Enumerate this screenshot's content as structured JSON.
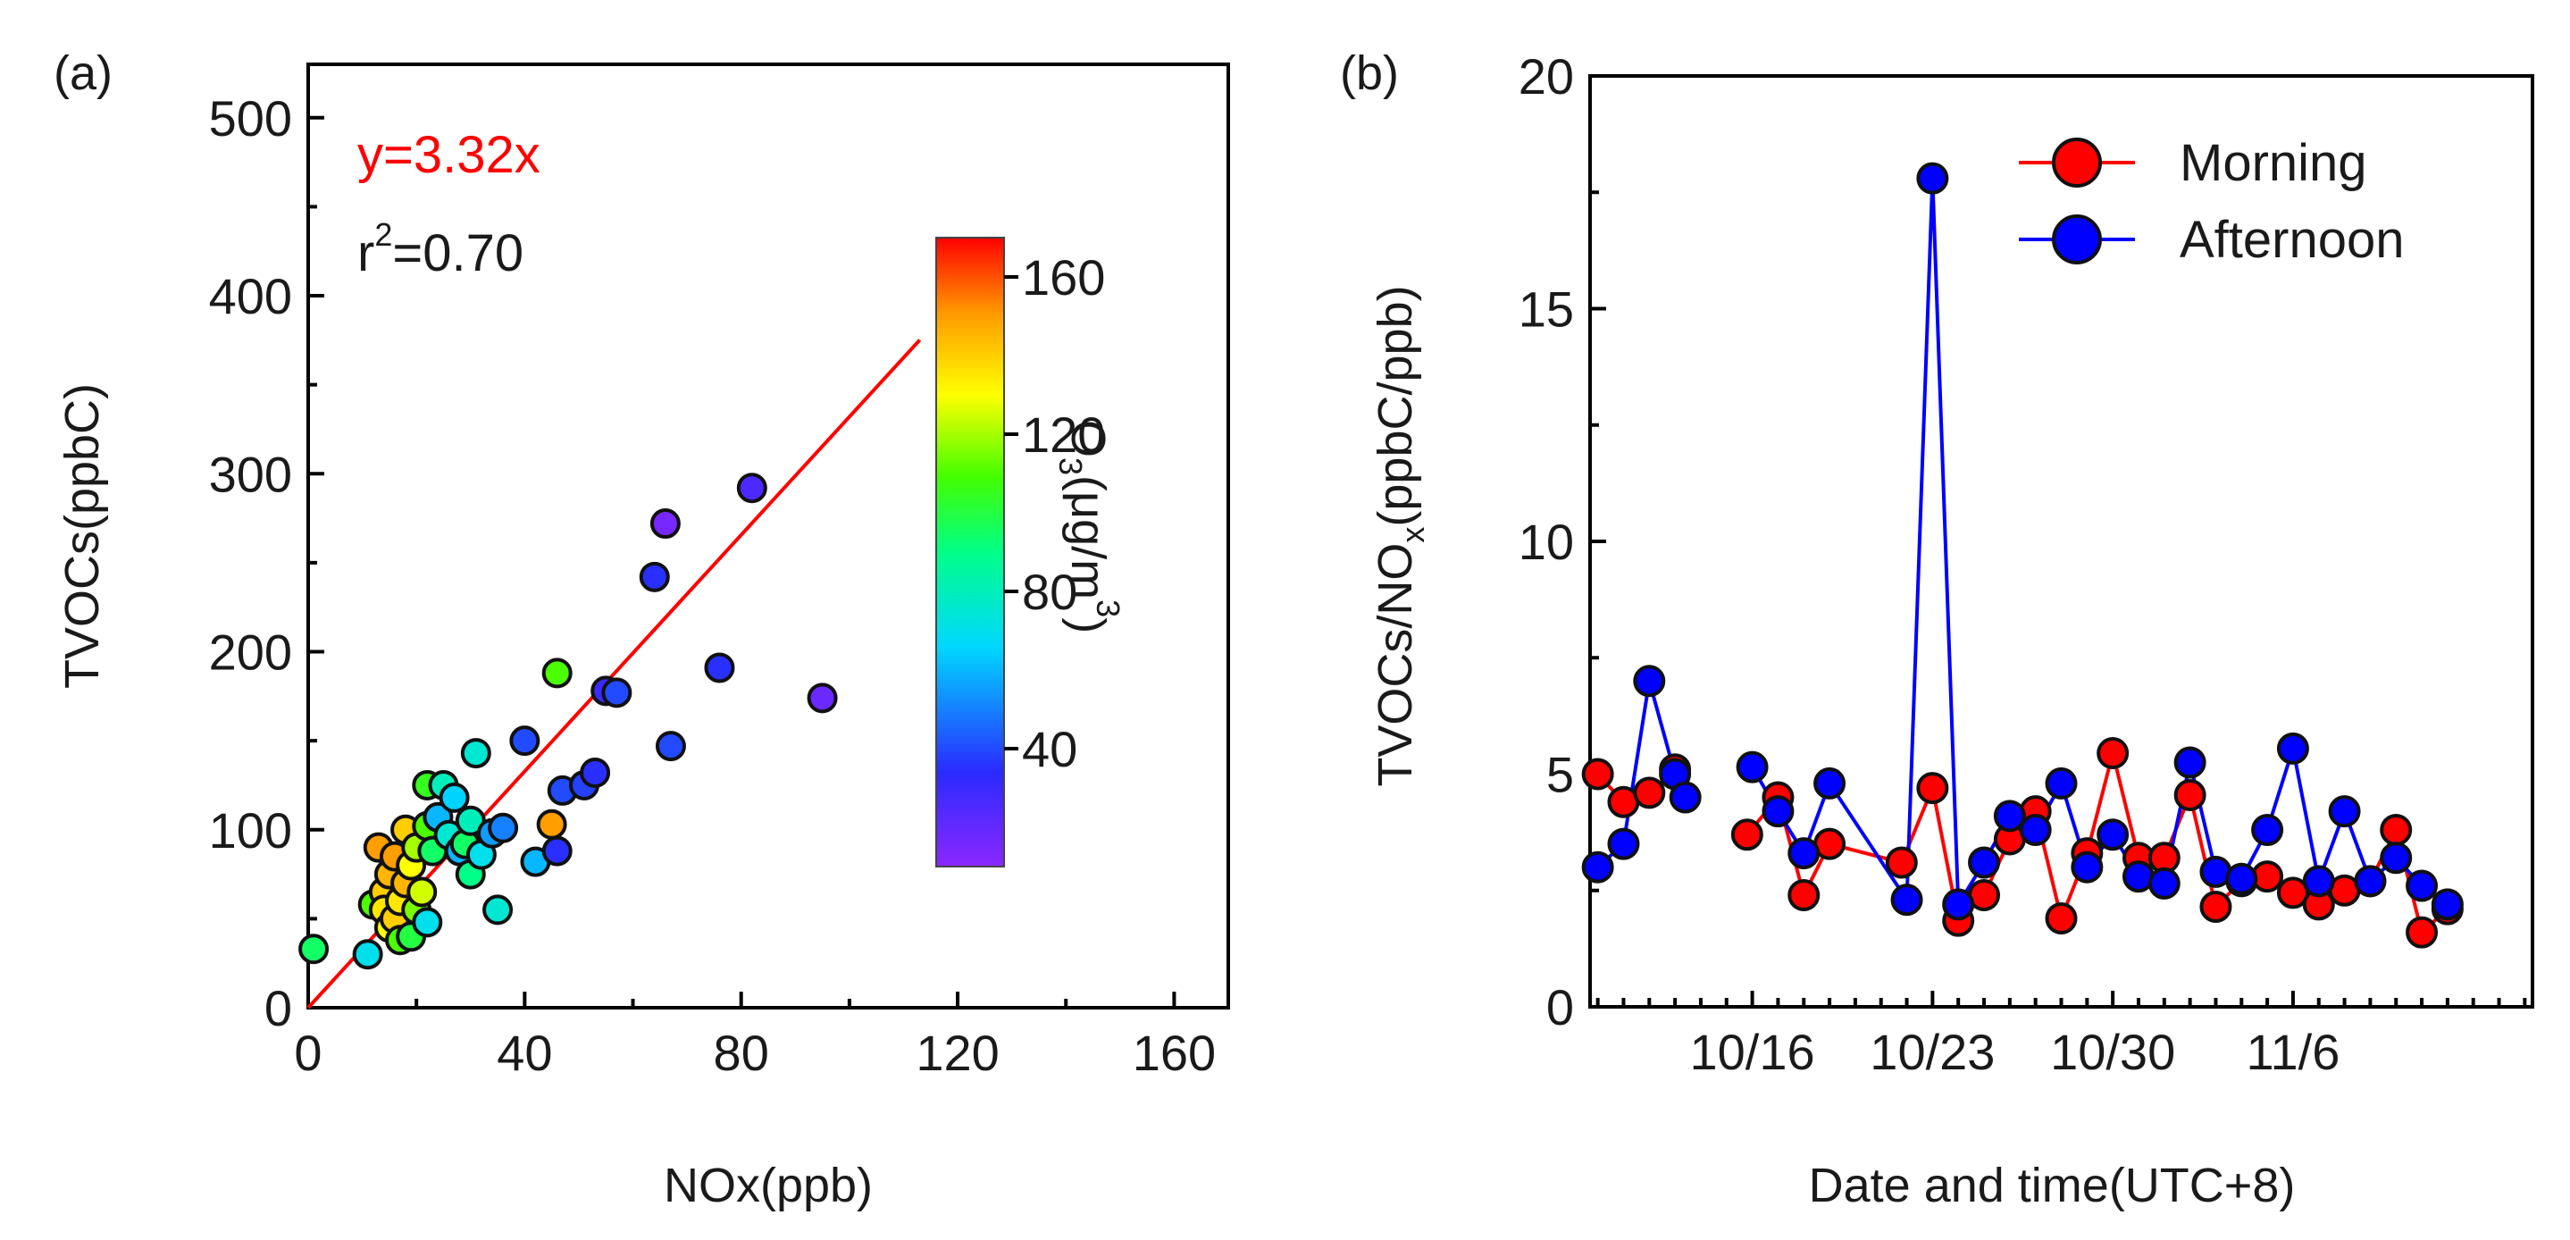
{
  "chart_data": [
    {
      "panel_label": "(a)",
      "type": "scatter",
      "xlabel": "NOx(ppb)",
      "ylabel": "TVOCs(ppbC)",
      "xlim": [
        0,
        170
      ],
      "ylim": [
        0,
        530
      ],
      "xticks": [
        0,
        40,
        80,
        120,
        160
      ],
      "yticks": [
        0,
        100,
        200,
        300,
        400,
        500
      ],
      "fit": {
        "slope": 3.32,
        "x_range": [
          0,
          113
        ],
        "equation": "y=3.32x",
        "r2_prefix": "r",
        "r2_sup": "2",
        "r2_suffix": "=0.70",
        "color": "#ff0000"
      },
      "colorbar": {
        "label_main": "O",
        "label_sub": "3",
        "label_mid": "(μg/m",
        "label_sup": "3",
        "label_end": ")",
        "min": 10,
        "max": 170,
        "ticks": [
          40,
          80,
          120,
          160
        ]
      },
      "points": [
        {
          "x": 1,
          "y": 33,
          "c": 95
        },
        {
          "x": 11,
          "y": 30,
          "c": 70
        },
        {
          "x": 12,
          "y": 58,
          "c": 110
        },
        {
          "x": 13,
          "y": 90,
          "c": 150
        },
        {
          "x": 14,
          "y": 65,
          "c": 140
        },
        {
          "x": 14,
          "y": 55,
          "c": 135
        },
        {
          "x": 15,
          "y": 75,
          "c": 145
        },
        {
          "x": 15,
          "y": 45,
          "c": 130
        },
        {
          "x": 16,
          "y": 85,
          "c": 150
        },
        {
          "x": 16,
          "y": 50,
          "c": 140
        },
        {
          "x": 17,
          "y": 60,
          "c": 135
        },
        {
          "x": 17,
          "y": 38,
          "c": 110
        },
        {
          "x": 18,
          "y": 100,
          "c": 140
        },
        {
          "x": 18,
          "y": 70,
          "c": 145
        },
        {
          "x": 19,
          "y": 40,
          "c": 100
        },
        {
          "x": 19,
          "y": 80,
          "c": 130
        },
        {
          "x": 20,
          "y": 55,
          "c": 115
        },
        {
          "x": 20,
          "y": 90,
          "c": 120
        },
        {
          "x": 21,
          "y": 65,
          "c": 125
        },
        {
          "x": 22,
          "y": 48,
          "c": 70
        },
        {
          "x": 22,
          "y": 102,
          "c": 110
        },
        {
          "x": 22,
          "y": 125,
          "c": 105
        },
        {
          "x": 23,
          "y": 88,
          "c": 95
        },
        {
          "x": 24,
          "y": 107,
          "c": 60
        },
        {
          "x": 25,
          "y": 125,
          "c": 80
        },
        {
          "x": 26,
          "y": 97,
          "c": 75
        },
        {
          "x": 27,
          "y": 118,
          "c": 65
        },
        {
          "x": 28,
          "y": 88,
          "c": 60
        },
        {
          "x": 29,
          "y": 92,
          "c": 95
        },
        {
          "x": 30,
          "y": 105,
          "c": 80
        },
        {
          "x": 30,
          "y": 75,
          "c": 90
        },
        {
          "x": 31,
          "y": 143,
          "c": 75
        },
        {
          "x": 32,
          "y": 86,
          "c": 70
        },
        {
          "x": 34,
          "y": 98,
          "c": 55
        },
        {
          "x": 35,
          "y": 55,
          "c": 75
        },
        {
          "x": 36,
          "y": 101,
          "c": 50
        },
        {
          "x": 40,
          "y": 150,
          "c": 40
        },
        {
          "x": 42,
          "y": 82,
          "c": 60
        },
        {
          "x": 45,
          "y": 103,
          "c": 150
        },
        {
          "x": 46,
          "y": 188,
          "c": 110
        },
        {
          "x": 46,
          "y": 88,
          "c": 35
        },
        {
          "x": 47,
          "y": 122,
          "c": 40
        },
        {
          "x": 51,
          "y": 125,
          "c": 38
        },
        {
          "x": 53,
          "y": 132,
          "c": 35
        },
        {
          "x": 55,
          "y": 178,
          "c": 30
        },
        {
          "x": 57,
          "y": 177,
          "c": 40
        },
        {
          "x": 64,
          "y": 242,
          "c": 35
        },
        {
          "x": 66,
          "y": 272,
          "c": 15
        },
        {
          "x": 67,
          "y": 147,
          "c": 40
        },
        {
          "x": 76,
          "y": 191,
          "c": 35
        },
        {
          "x": 82,
          "y": 292,
          "c": 25
        },
        {
          "x": 95,
          "y": 174,
          "c": 18
        }
      ]
    },
    {
      "panel_label": "(b)",
      "type": "line",
      "xlabel": "Date and time(UTC+8)",
      "ylabel_main": "TVOCs/NO",
      "ylabel_sub": "x",
      "ylabel_end": "(ppbC/ppb)",
      "xlim": [
        9.7,
        46.3
      ],
      "ylim": [
        0,
        20
      ],
      "yticks": [
        0,
        5,
        10,
        15,
        20
      ],
      "xticks_major": [
        {
          "x": 16,
          "label": "10/16"
        },
        {
          "x": 23,
          "label": "10/23"
        },
        {
          "x": 30,
          "label": "10/30"
        },
        {
          "x": 37,
          "label": "11/6"
        }
      ],
      "series": [
        {
          "name": "Morning",
          "color": "#ff0000",
          "points": [
            [
              10,
              5.0
            ],
            [
              11,
              4.4
            ],
            [
              12,
              4.6
            ],
            [
              13,
              5.1
            ],
            [
              null,
              null
            ],
            [
              15.8,
              3.7
            ],
            [
              17,
              4.5
            ],
            [
              18,
              2.4
            ],
            [
              19,
              3.5
            ],
            [
              21.8,
              3.1
            ],
            [
              23,
              4.7
            ],
            [
              24,
              1.85
            ],
            [
              25,
              2.4
            ],
            [
              26,
              3.6
            ],
            [
              27,
              4.2
            ],
            [
              28,
              1.9
            ],
            [
              29,
              3.3
            ],
            [
              30,
              5.45
            ],
            [
              31,
              3.2
            ],
            [
              32,
              3.2
            ],
            [
              33,
              4.55
            ],
            [
              34,
              2.15
            ],
            [
              35,
              2.7
            ],
            [
              36,
              2.8
            ],
            [
              37,
              2.45
            ],
            [
              38,
              2.2
            ],
            [
              39,
              2.5
            ],
            [
              40,
              2.7
            ],
            [
              41,
              3.8
            ],
            [
              42,
              1.6
            ],
            [
              43,
              2.1
            ]
          ]
        },
        {
          "name": "Afternoon",
          "color": "#0000ff",
          "points": [
            [
              10,
              3.0
            ],
            [
              11,
              3.5
            ],
            [
              12,
              7.0
            ],
            [
              13,
              5.0
            ],
            [
              13.4,
              4.5
            ],
            [
              null,
              null
            ],
            [
              16,
              5.15
            ],
            [
              17,
              4.2
            ],
            [
              18,
              3.3
            ],
            [
              19,
              4.8
            ],
            [
              22,
              2.3
            ],
            [
              23,
              17.8
            ],
            [
              24,
              2.2
            ],
            [
              25,
              3.1
            ],
            [
              26,
              4.1
            ],
            [
              27,
              3.8
            ],
            [
              28,
              4.8
            ],
            [
              29,
              3.0
            ],
            [
              30,
              3.7
            ],
            [
              31,
              2.8
            ],
            [
              32,
              2.65
            ],
            [
              33,
              5.25
            ],
            [
              34,
              2.9
            ],
            [
              35,
              2.75
            ],
            [
              36,
              3.8
            ],
            [
              37,
              5.55
            ],
            [
              38,
              2.7
            ],
            [
              39,
              4.2
            ],
            [
              40,
              2.7
            ],
            [
              41,
              3.2
            ],
            [
              42,
              2.6
            ],
            [
              43,
              2.2
            ]
          ]
        }
      ]
    }
  ]
}
